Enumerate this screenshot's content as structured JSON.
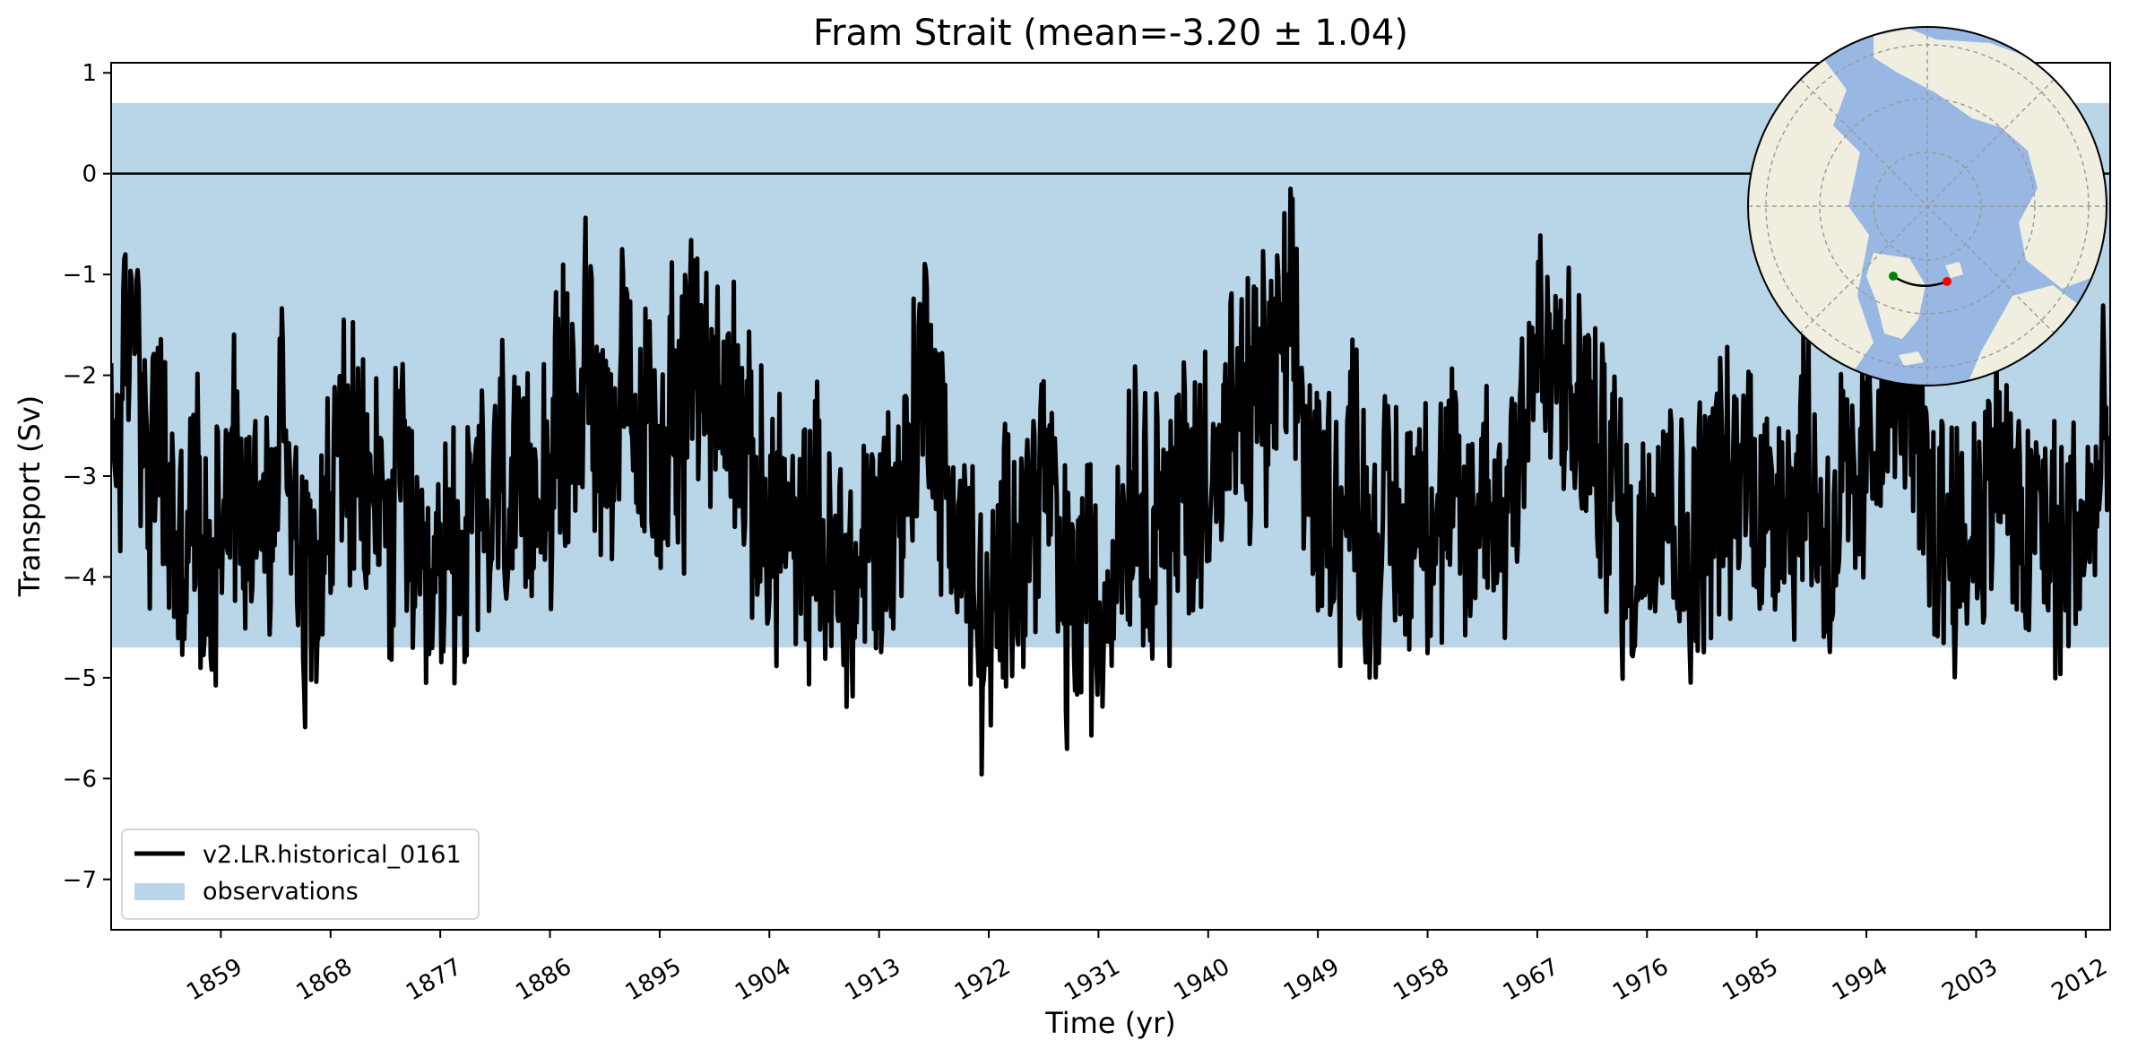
{
  "chart_data": {
    "type": "line",
    "title": "Fram Strait (mean=-3.20 ± 1.04)",
    "xlabel": "Time (yr)",
    "ylabel": "Transport (Sv)",
    "xlim": [
      1850,
      2014
    ],
    "ylim": [
      -7.5,
      1.1
    ],
    "x_ticks": [
      1859,
      1868,
      1877,
      1886,
      1895,
      1904,
      1913,
      1922,
      1931,
      1940,
      1949,
      1958,
      1967,
      1976,
      1985,
      1994,
      2003,
      2012
    ],
    "y_ticks": [
      1,
      0,
      -1,
      -2,
      -3,
      -4,
      -5,
      -6,
      -7
    ],
    "grid": false,
    "legend_position": "lower-left",
    "zero_line": 0,
    "observation_band": {
      "name": "observations",
      "low": -4.7,
      "high": 0.7,
      "color": "#b9d5e8"
    },
    "series": [
      {
        "name": "v2.LR.historical_0161",
        "color": "#000000",
        "anchor_points": [
          [
            1850.0,
            -2.9
          ],
          [
            1851.0,
            -2.2
          ],
          [
            1852.0,
            -1.1
          ],
          [
            1853.0,
            -3.2
          ],
          [
            1854.0,
            -2.6
          ],
          [
            1855.0,
            -3.6
          ],
          [
            1856.0,
            -3.9
          ],
          [
            1857.0,
            -3.2
          ],
          [
            1858.0,
            -4.4
          ],
          [
            1859.0,
            -3.1
          ],
          [
            1860.0,
            -2.6
          ],
          [
            1861.0,
            -3.6
          ],
          [
            1862.0,
            -2.9
          ],
          [
            1863.0,
            -3.8
          ],
          [
            1864.0,
            -2.3
          ],
          [
            1865.0,
            -3.1
          ],
          [
            1866.0,
            -4.2
          ],
          [
            1867.0,
            -3.4
          ],
          [
            1868.0,
            -3.5
          ],
          [
            1869.0,
            -2.4
          ],
          [
            1870.0,
            -3.1
          ],
          [
            1871.0,
            -3.4
          ],
          [
            1872.0,
            -3.0
          ],
          [
            1873.0,
            -3.8
          ],
          [
            1874.0,
            -2.7
          ],
          [
            1875.0,
            -4.2
          ],
          [
            1876.0,
            -4.6
          ],
          [
            1877.0,
            -4.0
          ],
          [
            1878.0,
            -3.6
          ],
          [
            1879.0,
            -3.8
          ],
          [
            1880.0,
            -3.3
          ],
          [
            1881.0,
            -3.6
          ],
          [
            1882.0,
            -2.9
          ],
          [
            1883.0,
            -3.4
          ],
          [
            1884.0,
            -3.5
          ],
          [
            1885.0,
            -2.8
          ],
          [
            1886.0,
            -3.0
          ],
          [
            1887.0,
            -2.3
          ],
          [
            1888.0,
            -2.6
          ],
          [
            1889.0,
            -1.7
          ],
          [
            1890.0,
            -2.3
          ],
          [
            1891.0,
            -2.6
          ],
          [
            1892.0,
            -2.1
          ],
          [
            1893.0,
            -2.9
          ],
          [
            1894.0,
            -2.6
          ],
          [
            1895.0,
            -2.8
          ],
          [
            1896.0,
            -2.2
          ],
          [
            1897.0,
            -2.5
          ],
          [
            1898.0,
            -1.6
          ],
          [
            1899.0,
            -1.9
          ],
          [
            1900.0,
            -2.4
          ],
          [
            1901.0,
            -2.0
          ],
          [
            1902.0,
            -2.9
          ],
          [
            1903.0,
            -3.3
          ],
          [
            1904.0,
            -3.6
          ],
          [
            1905.0,
            -3.2
          ],
          [
            1906.0,
            -3.9
          ],
          [
            1907.0,
            -3.7
          ],
          [
            1908.0,
            -3.4
          ],
          [
            1909.0,
            -4.1
          ],
          [
            1910.0,
            -3.8
          ],
          [
            1911.0,
            -4.2
          ],
          [
            1912.0,
            -3.5
          ],
          [
            1913.0,
            -3.7
          ],
          [
            1914.0,
            -3.4
          ],
          [
            1915.0,
            -3.1
          ],
          [
            1916.0,
            -2.4
          ],
          [
            1917.0,
            -1.6
          ],
          [
            1918.0,
            -2.9
          ],
          [
            1919.0,
            -3.3
          ],
          [
            1920.0,
            -3.7
          ],
          [
            1921.0,
            -4.4
          ],
          [
            1922.0,
            -4.8
          ],
          [
            1923.0,
            -4.1
          ],
          [
            1924.0,
            -3.4
          ],
          [
            1925.0,
            -3.7
          ],
          [
            1926.0,
            -2.9
          ],
          [
            1927.0,
            -3.1
          ],
          [
            1928.0,
            -4.2
          ],
          [
            1929.0,
            -4.4
          ],
          [
            1930.0,
            -3.9
          ],
          [
            1931.0,
            -4.6
          ],
          [
            1932.0,
            -3.9
          ],
          [
            1933.0,
            -3.4
          ],
          [
            1934.0,
            -2.9
          ],
          [
            1935.0,
            -3.6
          ],
          [
            1936.0,
            -3.0
          ],
          [
            1937.0,
            -3.7
          ],
          [
            1938.0,
            -2.8
          ],
          [
            1939.0,
            -3.3
          ],
          [
            1940.0,
            -2.6
          ],
          [
            1941.0,
            -3.1
          ],
          [
            1942.0,
            -2.4
          ],
          [
            1943.0,
            -2.6
          ],
          [
            1944.0,
            -2.0
          ],
          [
            1945.0,
            -2.2
          ],
          [
            1946.0,
            -1.8
          ],
          [
            1947.0,
            -1.6
          ],
          [
            1948.0,
            -2.7
          ],
          [
            1949.0,
            -3.4
          ],
          [
            1950.0,
            -3.1
          ],
          [
            1951.0,
            -3.6
          ],
          [
            1952.0,
            -2.6
          ],
          [
            1953.0,
            -3.8
          ],
          [
            1954.0,
            -3.6
          ],
          [
            1955.0,
            -3.4
          ],
          [
            1956.0,
            -3.8
          ],
          [
            1957.0,
            -3.0
          ],
          [
            1958.0,
            -3.3
          ],
          [
            1959.0,
            -3.5
          ],
          [
            1960.0,
            -3.2
          ],
          [
            1961.0,
            -3.7
          ],
          [
            1962.0,
            -3.4
          ],
          [
            1963.0,
            -3.0
          ],
          [
            1964.0,
            -3.6
          ],
          [
            1965.0,
            -2.9
          ],
          [
            1966.0,
            -2.2
          ],
          [
            1967.0,
            -1.7
          ],
          [
            1968.0,
            -2.1
          ],
          [
            1969.0,
            -1.9
          ],
          [
            1970.0,
            -2.6
          ],
          [
            1971.0,
            -2.2
          ],
          [
            1972.0,
            -3.1
          ],
          [
            1973.0,
            -2.8
          ],
          [
            1974.0,
            -3.6
          ],
          [
            1975.0,
            -3.9
          ],
          [
            1976.0,
            -3.4
          ],
          [
            1977.0,
            -2.8
          ],
          [
            1978.0,
            -3.1
          ],
          [
            1979.0,
            -3.9
          ],
          [
            1980.0,
            -3.6
          ],
          [
            1981.0,
            -3.3
          ],
          [
            1982.0,
            -2.9
          ],
          [
            1983.0,
            -3.4
          ],
          [
            1984.0,
            -2.7
          ],
          [
            1985.0,
            -3.1
          ],
          [
            1986.0,
            -3.5
          ],
          [
            1987.0,
            -2.9
          ],
          [
            1988.0,
            -3.3
          ],
          [
            1989.0,
            -2.6
          ],
          [
            1990.0,
            -3.4
          ],
          [
            1991.0,
            -3.8
          ],
          [
            1992.0,
            -3.1
          ],
          [
            1993.0,
            -3.5
          ],
          [
            1994.0,
            -2.9
          ],
          [
            1995.0,
            -2.3
          ],
          [
            1996.0,
            -2.1
          ],
          [
            1997.0,
            -1.7
          ],
          [
            1998.0,
            -2.6
          ],
          [
            1999.0,
            -3.2
          ],
          [
            2000.0,
            -3.6
          ],
          [
            2001.0,
            -3.3
          ],
          [
            2002.0,
            -3.9
          ],
          [
            2003.0,
            -3.4
          ],
          [
            2004.0,
            -3.1
          ],
          [
            2005.0,
            -2.6
          ],
          [
            2006.0,
            -3.5
          ],
          [
            2007.0,
            -3.8
          ],
          [
            2008.0,
            -3.3
          ],
          [
            2009.0,
            -3.6
          ],
          [
            2010.0,
            -3.9
          ],
          [
            2011.0,
            -3.4
          ],
          [
            2012.0,
            -3.7
          ],
          [
            2013.0,
            -3.1
          ],
          [
            2014.0,
            -2.6
          ]
        ]
      }
    ],
    "inset_map": {
      "projection": "north polar stereographic",
      "colors": {
        "ocean": "#98b7e3",
        "land": "#efeedf",
        "grid": "#999999"
      },
      "section_start_marker": "#008000",
      "section_end_marker": "#ff0000"
    }
  }
}
